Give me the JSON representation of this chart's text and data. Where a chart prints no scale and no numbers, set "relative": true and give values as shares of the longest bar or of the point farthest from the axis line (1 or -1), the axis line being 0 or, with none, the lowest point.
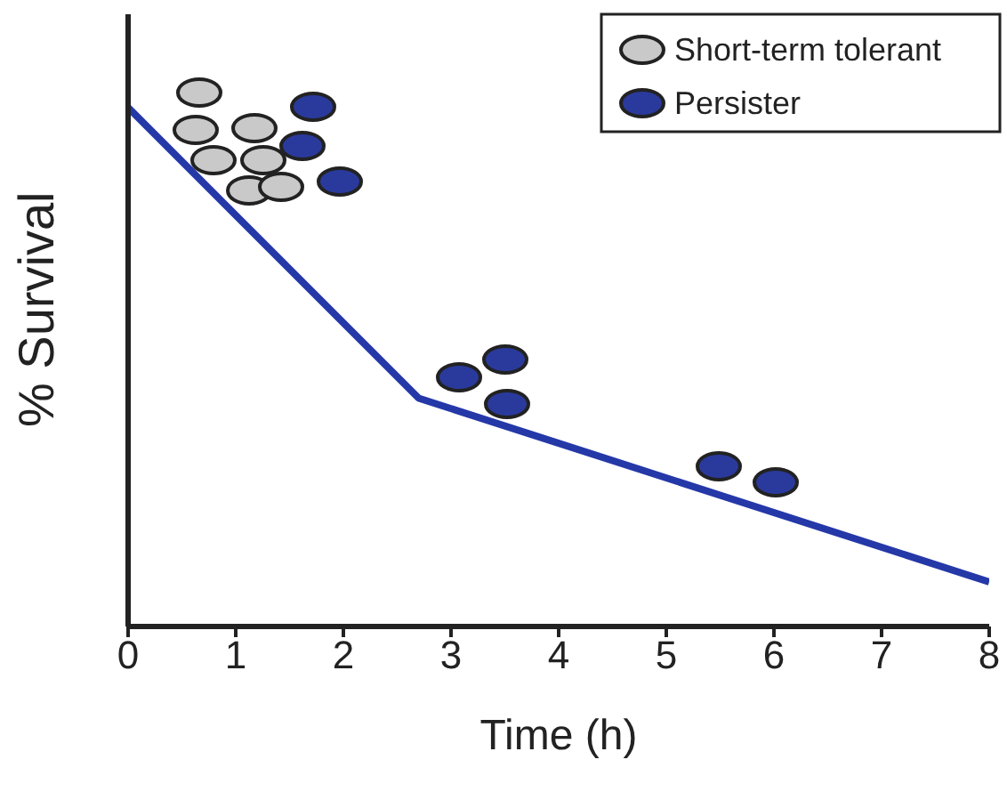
{
  "chart_data": {
    "type": "line",
    "xlabel": "Time (h)",
    "ylabel": "% Survival",
    "relative": true,
    "xlim": [
      0,
      8
    ],
    "xticks": [
      0,
      1,
      2,
      3,
      4,
      5,
      6,
      7,
      8
    ],
    "series": [
      {
        "color": "#2538a8",
        "x": [
          0,
          2.7,
          8
        ],
        "values": [
          1,
          0.44,
          0.086
        ]
      }
    ],
    "marker": "none",
    "grid": false,
    "annotations": [
      "Short-term tolerant",
      "Persister"
    ]
  }
}
